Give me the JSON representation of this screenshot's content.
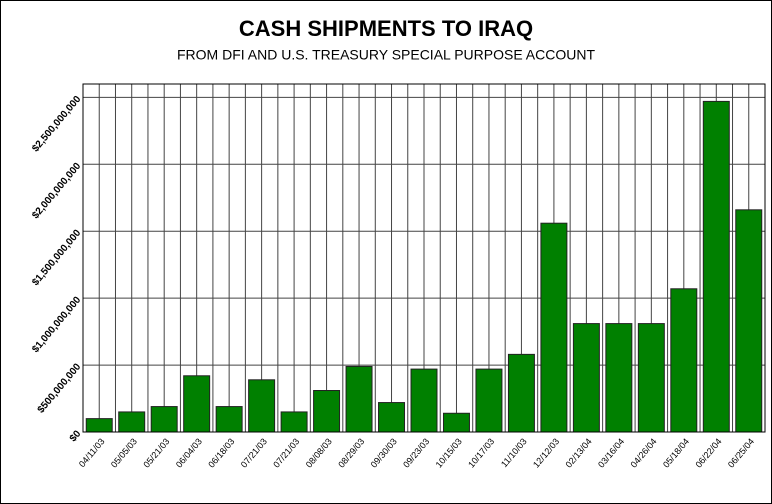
{
  "chart_data": {
    "type": "bar",
    "title": "CASH SHIPMENTS TO IRAQ",
    "subtitle": "FROM DFI AND U.S. TREASURY SPECIAL PURPOSE ACCOUNT",
    "categories": [
      "04/11/03",
      "05/05/03",
      "05/21/03",
      "06/04/03",
      "06/18/03",
      "07/21/03",
      "07/21/03",
      "08/08/03",
      "08/29/03",
      "09/30/03",
      "09/23/03",
      "10/15/03",
      "10/17/03",
      "11/10/03",
      "12/12/03",
      "02/13/04",
      "03/16/04",
      "04/26/04",
      "05/18/04",
      "06/22/04",
      "06/25/04"
    ],
    "values": [
      100000000,
      150000000,
      190000000,
      420000000,
      190000000,
      390000000,
      150000000,
      310000000,
      490000000,
      220000000,
      470000000,
      140000000,
      470000000,
      580000000,
      1560000000,
      810000000,
      810000000,
      810000000,
      1070000000,
      2470000000,
      1660000000
    ],
    "color": "#008000",
    "ylim": [
      0,
      2600000000
    ],
    "yticks": [
      {
        "value": 0,
        "label": "$0"
      },
      {
        "value": 500000000,
        "label": "$500,000,000"
      },
      {
        "value": 1000000000,
        "label": "$1,000,000,000"
      },
      {
        "value": 1500000000,
        "label": "$1,500,000,000"
      },
      {
        "value": 2000000000,
        "label": "$2,000,000,000"
      },
      {
        "value": 2500000000,
        "label": "$2,500,000,000"
      }
    ],
    "grid": true
  }
}
